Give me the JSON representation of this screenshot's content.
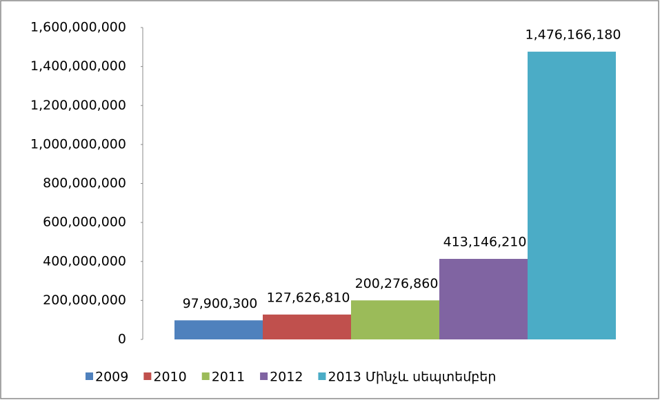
{
  "chart_data": {
    "type": "bar",
    "series": [
      {
        "name": "2009",
        "color": "#4f81bd",
        "values": [
          97900300
        ],
        "value_labels": [
          "97,900,300"
        ]
      },
      {
        "name": "2010",
        "color": "#c0504d",
        "values": [
          127626810
        ],
        "value_labels": [
          "127,626,810"
        ]
      },
      {
        "name": "2011",
        "color": "#9bbb59",
        "values": [
          200276860
        ],
        "value_labels": [
          "200,276,860"
        ]
      },
      {
        "name": "2012",
        "color": "#8064a2",
        "values": [
          413146210
        ],
        "value_labels": [
          "413,146,210"
        ]
      },
      {
        "name": "2013 Մինչև սեպտեմբեր",
        "color": "#4bacc6",
        "values": [
          1476166180
        ],
        "value_labels": [
          "1,476,166,180"
        ]
      }
    ],
    "ylim": [
      0,
      1600000000
    ],
    "yticks": [
      0,
      {
        "value": 200000000,
        "label": "200,000,000"
      },
      {
        "value": 400000000,
        "label": "400,000,000"
      },
      {
        "value": 600000000,
        "label": "600,000,000"
      },
      {
        "value": 800000000,
        "label": "800,000,000"
      },
      {
        "value": 1000000000,
        "label": "1,000,000,000"
      },
      {
        "value": 1200000000,
        "label": "1,200,000,000"
      },
      {
        "value": 1400000000,
        "label": "1,400,000,000"
      },
      {
        "value": 1600000000,
        "label": "1,600,000,000"
      }
    ],
    "grid": false,
    "legend": "bottom"
  }
}
